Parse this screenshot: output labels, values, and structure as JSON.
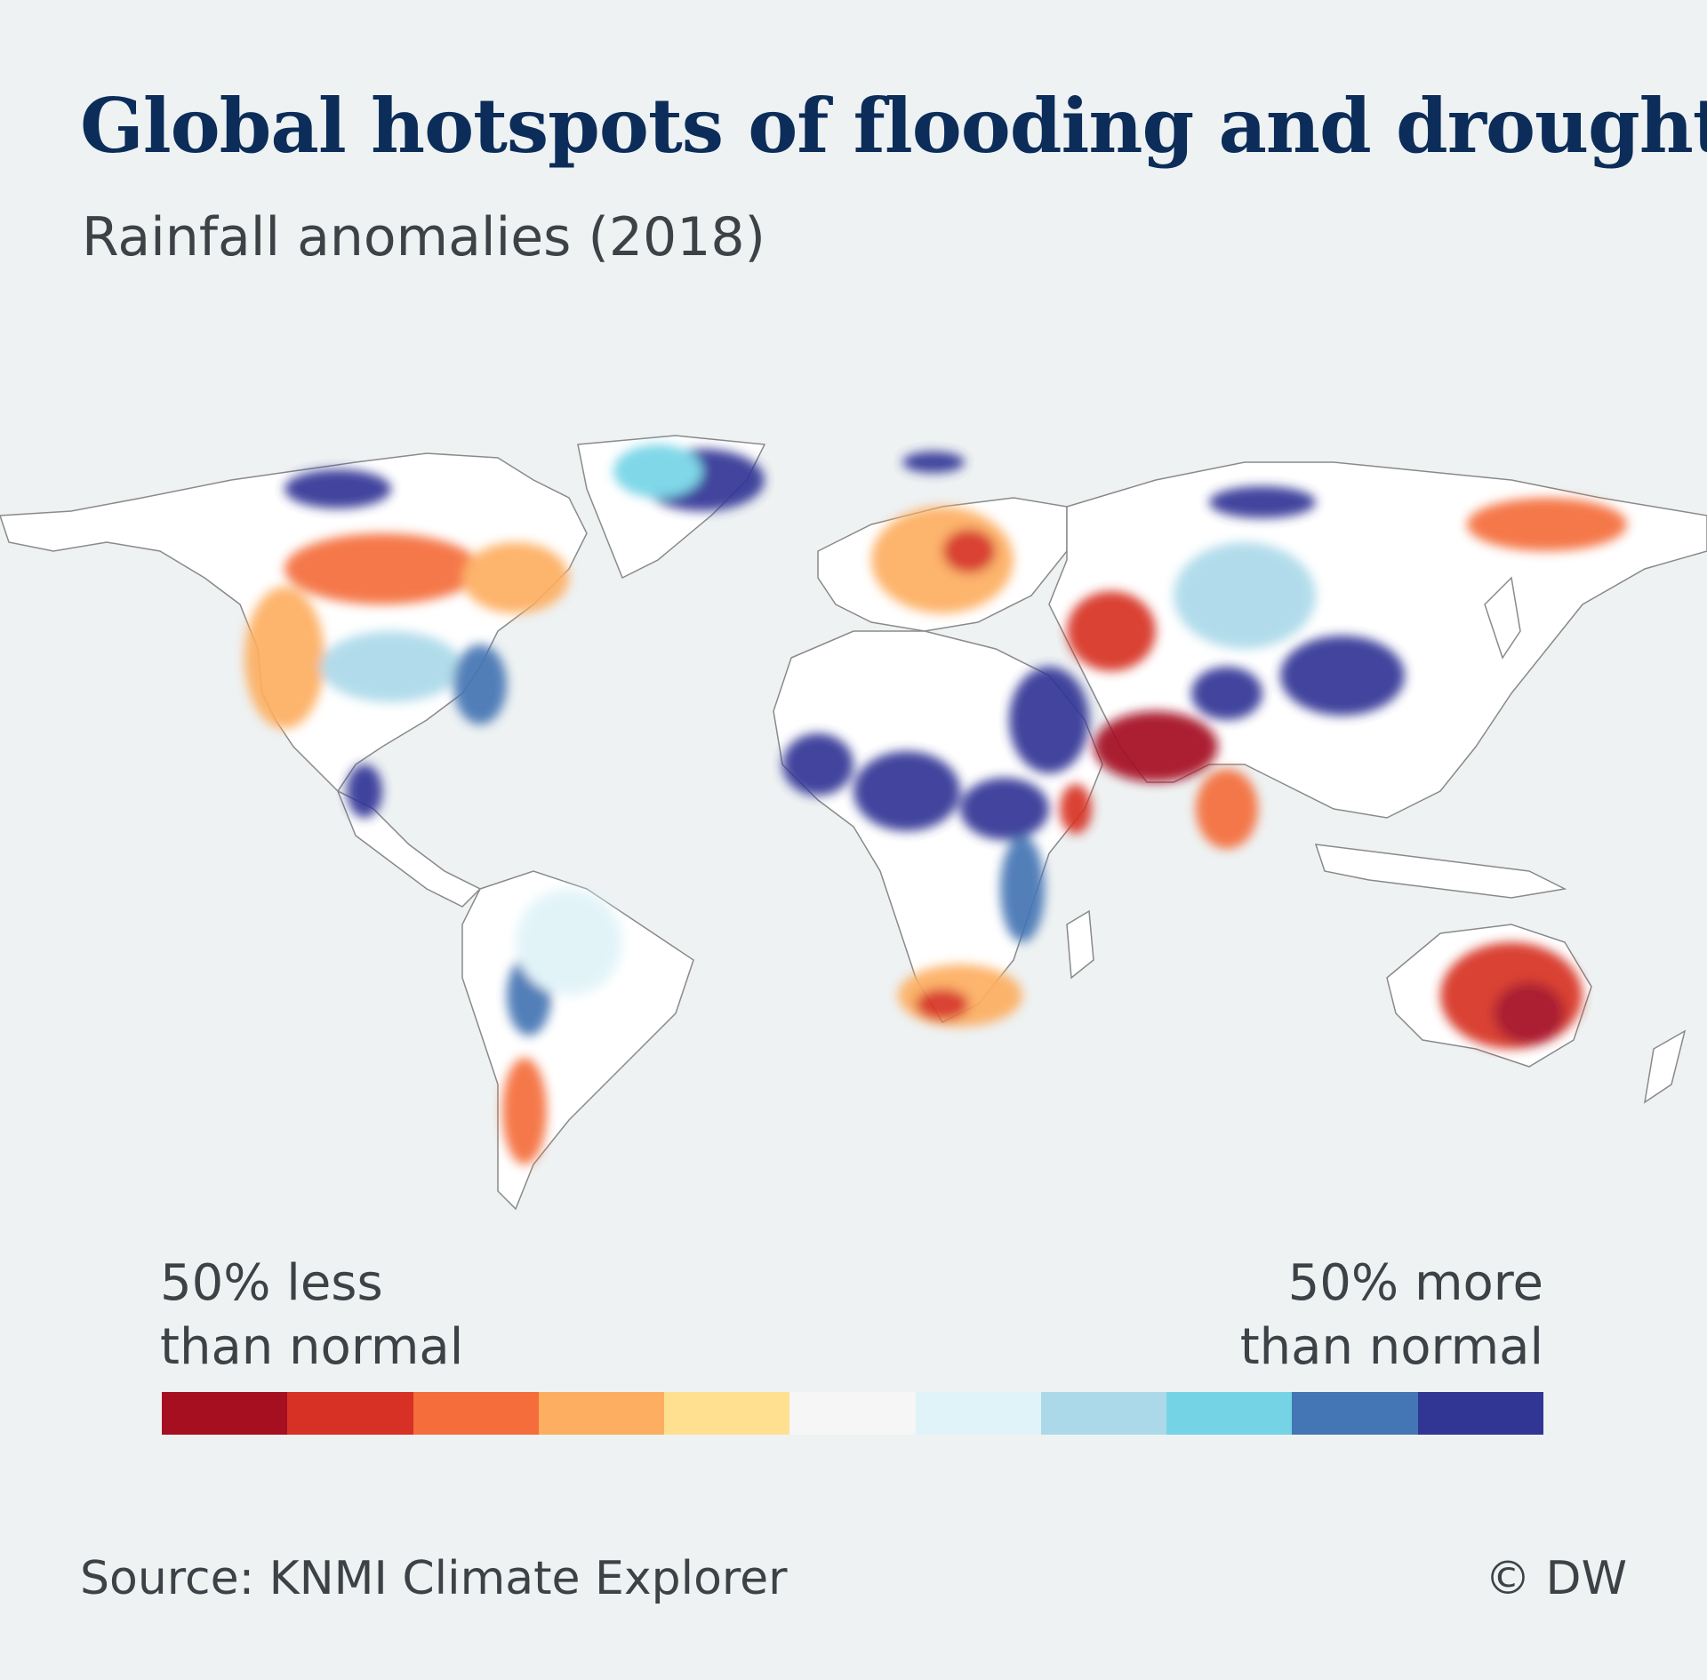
{
  "title": "Global hotspots of flooding and drought",
  "subtitle": "Rainfall anomalies (2018)",
  "legend": {
    "left_line1": "50% less",
    "left_line2": "than normal",
    "right_line1": "50% more",
    "right_line2": "than normal",
    "scale_colors": [
      "#a50f20",
      "#d73024",
      "#f46d3b",
      "#fdae60",
      "#fee090",
      "#f6f6f6",
      "#e0f3f8",
      "#abd9e9",
      "#74d4e6",
      "#4475b4",
      "#313695"
    ]
  },
  "source": "Source: KNMI Climate Explorer",
  "credit": "© DW",
  "map": {
    "land_color": "#ffffff",
    "border_color": "#777777"
  }
}
